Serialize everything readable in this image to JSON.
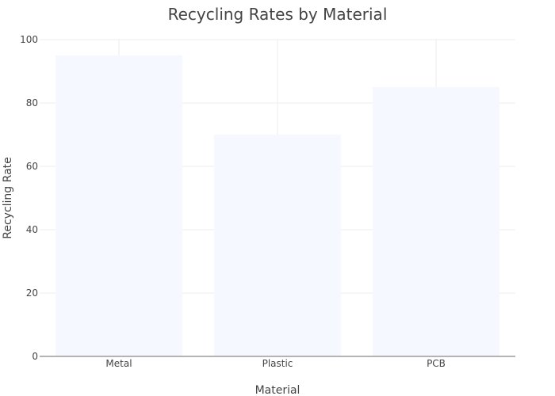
{
  "chart_data": {
    "type": "bar",
    "title": "Recycling Rates by Material",
    "xlabel": "Material",
    "ylabel": "Recycling Rate",
    "categories": [
      "Metal",
      "Plastic",
      "PCB"
    ],
    "values": [
      95,
      70,
      85
    ],
    "ylim": [
      0,
      100
    ],
    "yticks": [
      0,
      20,
      40,
      60,
      80,
      100
    ],
    "bar_color": "#f5f9ff",
    "grid": true,
    "legend": "none"
  }
}
